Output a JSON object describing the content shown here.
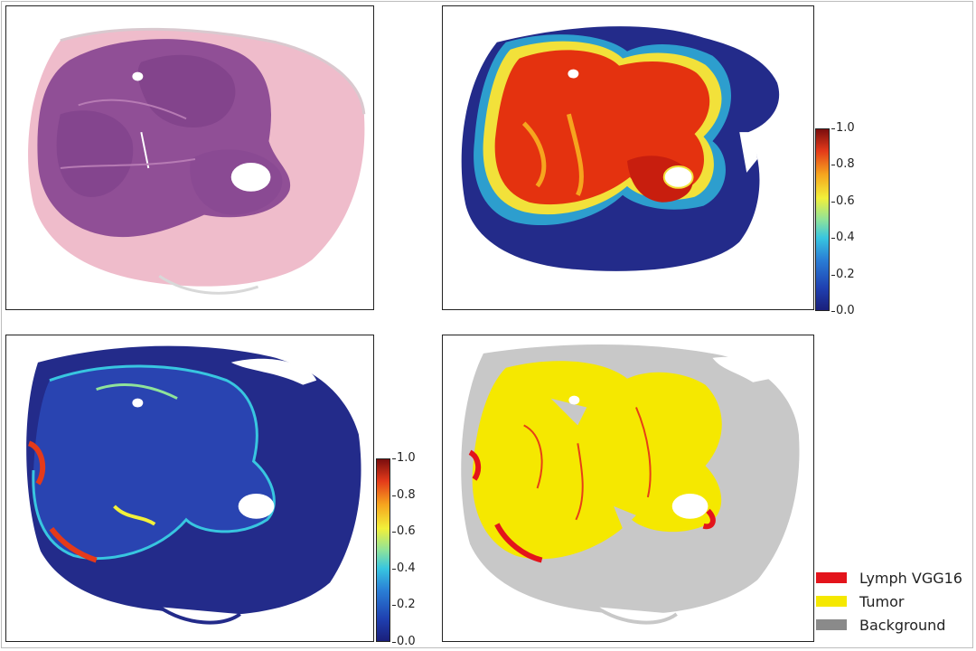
{
  "colorbar_ticks": [
    "1.0",
    "0.8",
    "0.6",
    "0.4",
    "0.2",
    "0.0"
  ],
  "legend": [
    {
      "label": "Lymph VGG16",
      "color": "#e3141b"
    },
    {
      "label": "Tumor",
      "color": "#f5e800"
    },
    {
      "label": "Background",
      "color": "#8a8a8a"
    }
  ],
  "colors": {
    "he_stroma": "#ecb6c6",
    "he_tumor": "#8f4f95",
    "heat_low": "#232b8a",
    "heat_high": "#d82a10",
    "class_tumor": "#f5e800",
    "class_lymph": "#e3141b",
    "class_background": "#c8c8c8"
  }
}
